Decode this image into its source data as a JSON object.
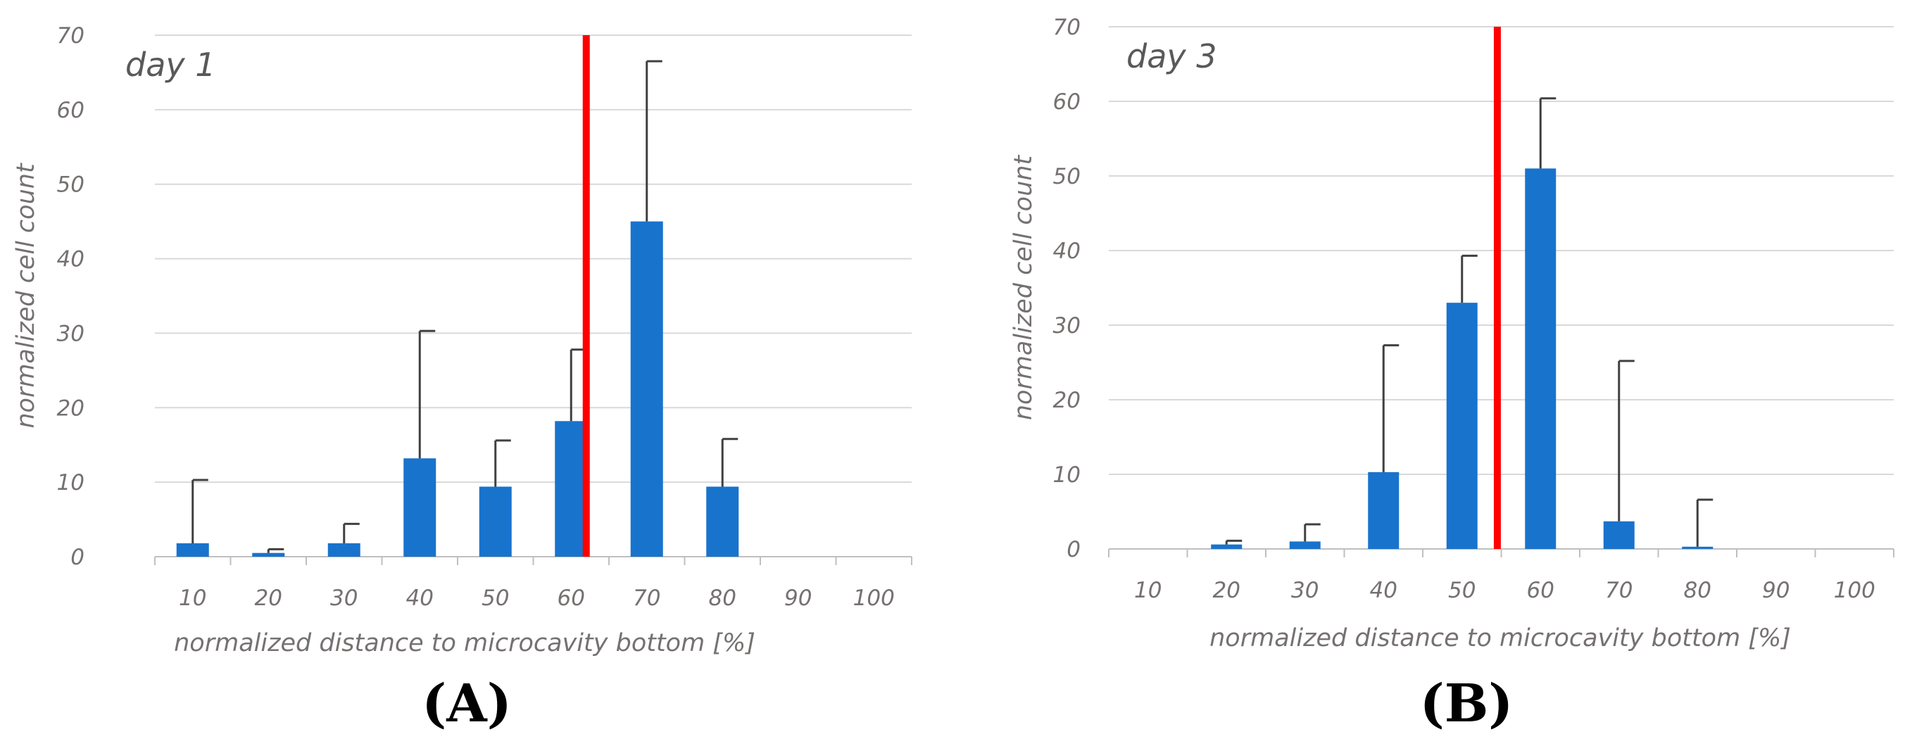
{
  "colors": {
    "bar": "#1873cd",
    "threshold": "#ff0000"
  },
  "chart_data": [
    {
      "type": "bar",
      "panel_label": "(A)",
      "annotation": "day 1",
      "xlabel": "normalized distance to microcavity bottom [%]",
      "ylabel": "normalized cell count",
      "categories": [
        "10",
        "20",
        "30",
        "40",
        "50",
        "60",
        "70",
        "80",
        "90",
        "100"
      ],
      "values": [
        1.8,
        0.5,
        1.8,
        13.2,
        9.4,
        18.2,
        45,
        9.4,
        0,
        0
      ],
      "error_upper": [
        10.3,
        1.0,
        4.4,
        30.3,
        15.6,
        27.8,
        66.5,
        15.8,
        null,
        null
      ],
      "ylim": [
        0,
        70
      ],
      "yticks": [
        0,
        10,
        20,
        30,
        40,
        50,
        60,
        70
      ],
      "threshold_x": 62,
      "grid": true
    },
    {
      "type": "bar",
      "panel_label": "(B)",
      "annotation": "day 3",
      "xlabel": "normalized distance to microcavity bottom [%]",
      "ylabel": "normalized cell count",
      "categories": [
        "10",
        "20",
        "30",
        "40",
        "50",
        "60",
        "70",
        "80",
        "90",
        "100"
      ],
      "values": [
        0,
        0.6,
        1.0,
        10.3,
        33,
        51,
        3.7,
        0.3,
        0,
        0
      ],
      "error_upper": [
        null,
        1.1,
        3.3,
        27.3,
        39.3,
        60.4,
        25.2,
        6.6,
        null,
        null
      ],
      "ylim": [
        0,
        70
      ],
      "yticks": [
        0,
        10,
        20,
        30,
        40,
        50,
        60,
        70
      ],
      "threshold_x": 54.5,
      "grid": true
    }
  ]
}
